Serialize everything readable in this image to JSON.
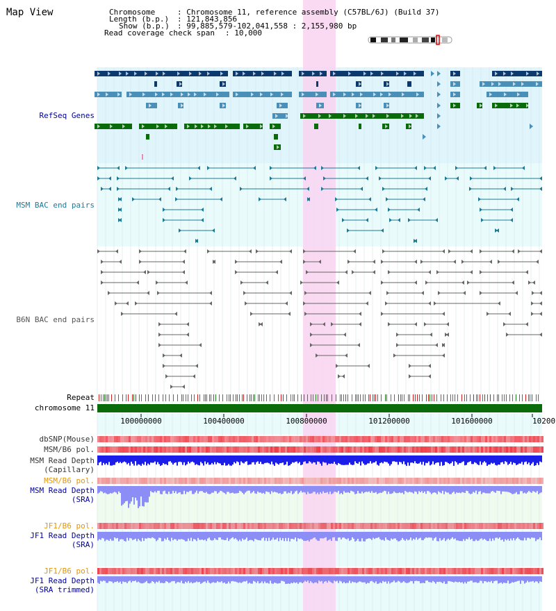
{
  "page": {
    "title": "Map View"
  },
  "info": {
    "chromosome_label": "Chromosome",
    "chromosome_value": ": Chromosome 11, reference assembly (C57BL/6J) (Build 37)",
    "length_label": "Length (b.p.)",
    "length_value": ": 121,843,856",
    "show_label": "Show (b.p.)",
    "show_value": ": 99,885,579-102,041,558 : 2,155,980 bp",
    "coverage_label": "Read coverage check span",
    "coverage_value": ": 10,000"
  },
  "tracks": {
    "refseq": "RefSeq Genes",
    "msm_bac": "MSM BAC end pairs",
    "b6n_bac": "B6N BAC end pairs",
    "repeat": "Repeat",
    "chromosome": "chromosome 11",
    "dbsnp": "dbSNP(Mouse)",
    "msm_b6_pol_1": "MSM/B6 pol.",
    "msm_read_depth_cap_1": "MSM Read Depth",
    "msm_read_depth_cap_2": "(Capillary)",
    "msm_b6_pol_2": "MSM/B6 pol.",
    "msm_read_depth_sra_1": "MSM Read Depth",
    "msm_read_depth_sra_2": "(SRA)",
    "jf1_b6_pol_1": "JF1/B6 pol.",
    "jf1_read_depth_sra_1": "JF1 Read Depth",
    "jf1_read_depth_sra_2": "(SRA)",
    "jf1_b6_pol_2": "JF1/B6 pol.",
    "jf1_read_depth_trim_1": "JF1 Read Depth",
    "jf1_read_depth_trim_2": "(SRA trimmed)"
  },
  "axis": {
    "ticks": [
      "100000000",
      "100400000",
      "100800000",
      "101200000",
      "101600000",
      "10200"
    ]
  },
  "colors": {
    "refseq_bg": "#dff4fb",
    "bac_bg": "#e9fbfb",
    "highlight": "#f9d4f1",
    "gene_dark": "#0d3a6e",
    "gene_mid": "#4a8fb8",
    "gene_green": "#0a6b0a",
    "msm_bac": "#1d7896",
    "b6n_bac": "#666666",
    "chromosome_bar": "#0a6b0a",
    "depth_capillary": "#1a1ee8",
    "depth_sra": "#8c8ef5",
    "sra_bg": "#eefbee",
    "label_refseq": "#000099",
    "label_msm": "#1d7896",
    "label_b6n": "#555555",
    "label_pol_orange": "#e69600",
    "label_depth_blue": "#000099"
  }
}
